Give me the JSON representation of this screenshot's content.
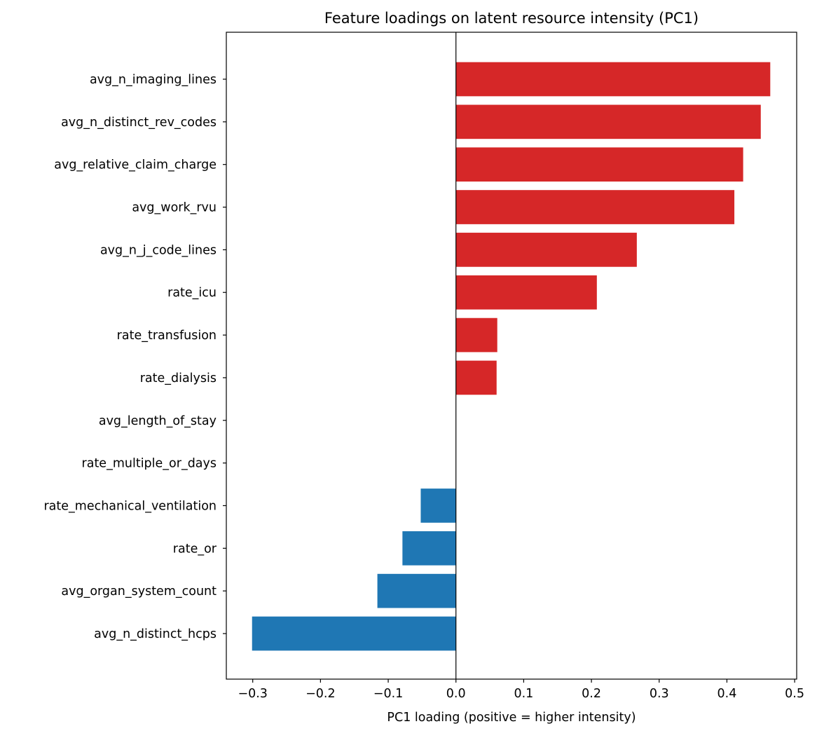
{
  "chart_data": {
    "type": "bar",
    "orientation": "horizontal",
    "title": "Feature loadings on latent resource intensity (PC1)",
    "xlabel": "PC1 loading (positive = higher intensity)",
    "ylabel": "",
    "xlim": [
      -0.339,
      0.503
    ],
    "xticks": [
      -0.3,
      -0.2,
      -0.1,
      0.0,
      0.1,
      0.2,
      0.3,
      0.4,
      0.5
    ],
    "xtick_labels": [
      "−0.3",
      "−0.2",
      "−0.1",
      "0.0",
      "0.1",
      "0.2",
      "0.3",
      "0.4",
      "0.5"
    ],
    "grid": false,
    "zero_line": true,
    "colors": {
      "positive": "#d62728",
      "negative": "#1f77b4"
    },
    "categories": [
      "avg_n_imaging_lines",
      "avg_n_distinct_rev_codes",
      "avg_relative_claim_charge",
      "avg_work_rvu",
      "avg_n_j_code_lines",
      "rate_icu",
      "rate_transfusion",
      "rate_dialysis",
      "avg_length_of_stay",
      "rate_multiple_or_days",
      "rate_mechanical_ventilation",
      "rate_or",
      "avg_organ_system_count",
      "avg_n_distinct_hcps"
    ],
    "values": [
      0.464,
      0.45,
      0.424,
      0.411,
      0.267,
      0.208,
      0.061,
      0.06,
      0.0,
      0.0,
      -0.052,
      -0.079,
      -0.116,
      -0.301
    ]
  }
}
